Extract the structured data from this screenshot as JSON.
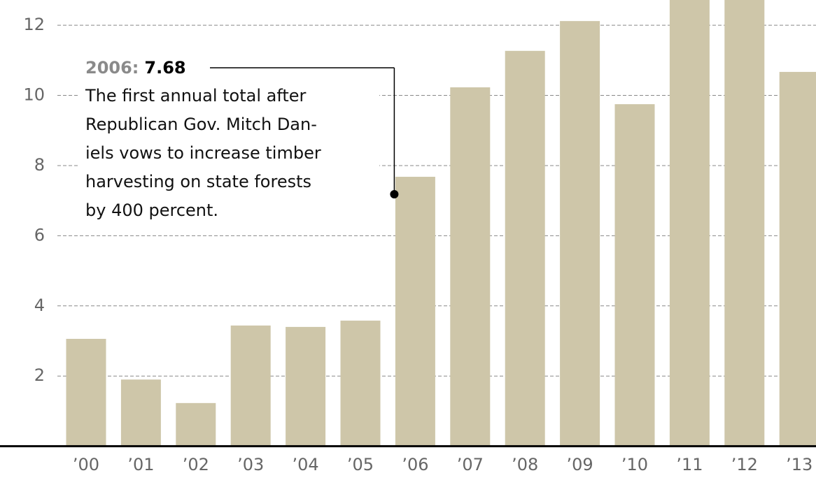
{
  "chart_data": {
    "type": "bar",
    "categories": [
      "’00",
      "’01",
      "’02",
      "’03",
      "’04",
      "’05",
      "’06",
      "’07",
      "’08",
      "’09",
      "’10",
      "’11",
      "’12",
      "’13"
    ],
    "values": [
      3.06,
      1.9,
      1.23,
      3.44,
      3.4,
      3.58,
      7.68,
      10.23,
      11.27,
      12.12,
      9.75,
      13.5,
      13.5,
      10.67
    ],
    "color": "#cec6a9",
    "ylim": [
      0,
      12.72
    ],
    "yticks": [
      2,
      4,
      6,
      8,
      10,
      12
    ],
    "grid": true,
    "annotation": {
      "label": "2006:",
      "category_index": 6,
      "lines": [
        "The first annual total after",
        "Republican Gov. Mitch Dan-",
        "iels vows to increase timber",
        "harvesting on state forests",
        "by 400 percent."
      ]
    }
  }
}
